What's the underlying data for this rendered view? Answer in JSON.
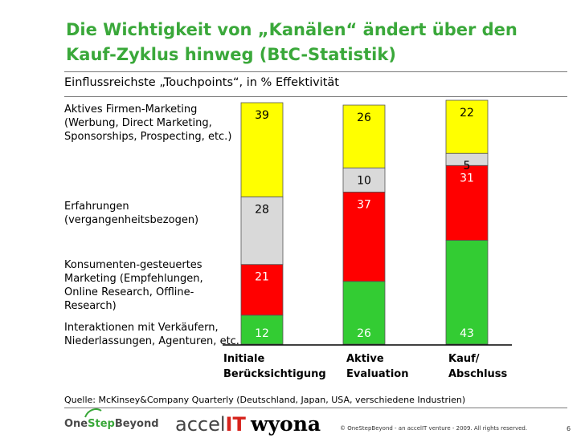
{
  "header": {
    "title": "Die Wichtigkeit von „Kanälen“ ändert über den Kauf-Zyklus hinweg (BtC-Statistik)",
    "subtitle": "Einflussreichste „Touchpoints“, in % Effektivität"
  },
  "category_labels": [
    "Aktives Firmen-Marketing (Werbung, Direct Marketing, Sponsorships, Prospecting, etc.)",
    "Erfahrungen (vergangenheitsbezogen)",
    "Konsumenten-gesteuertes Marketing (Empfehlungen, Online Research, Offline-Research)",
    "Interaktionen mit Verkäufern, Niederlassungen, Agenturen, etc."
  ],
  "chart_data": {
    "type": "bar",
    "stacked": true,
    "categories": [
      "Initiale Berücksichtigung",
      "Aktive Evaluation",
      "Kauf/ Abschluss"
    ],
    "series": [
      {
        "name": "Interaktionen mit Verkäufern, Niederlassungen, Agenturen, etc.",
        "color": "#33cc33",
        "values": [
          12,
          26,
          43
        ]
      },
      {
        "name": "Konsumenten-gesteuertes Marketing (Empfehlungen, Online Research, Offline-Research)",
        "color": "#ff0000",
        "values": [
          21,
          37,
          31
        ]
      },
      {
        "name": "Erfahrungen (vergangenheitsbezogen)",
        "color": "#d9d9d9",
        "values": [
          28,
          10,
          5
        ]
      },
      {
        "name": "Aktives Firmen-Marketing (Werbung, Direct Marketing, Sponsorships, Prospecting, etc.)",
        "color": "#ffff00",
        "values": [
          39,
          26,
          22
        ]
      }
    ],
    "label_colors": [
      "#ffffff",
      "#ffffff",
      "#000000",
      "#000000"
    ],
    "ylim": [
      0,
      100
    ]
  },
  "x_labels": [
    [
      "Initiale",
      "Berücksichtigung"
    ],
    [
      "Aktive",
      "Evaluation"
    ],
    [
      "Kauf/",
      "Abschluss"
    ]
  ],
  "source": "Quelle: McKinsey&Company Quarterly (Deutschland, Japan, USA, verschiedene Industrien)",
  "footer": {
    "brand_one": "One",
    "brand_step": "Step",
    "brand_beyond": "Beyond",
    "accel_a": "accel",
    "accel_b": "IT",
    "wyona": "wyona",
    "copyright": "© OneStepBeyond - an accelIT venture -  2009. All rights reserved.",
    "page": "6"
  }
}
